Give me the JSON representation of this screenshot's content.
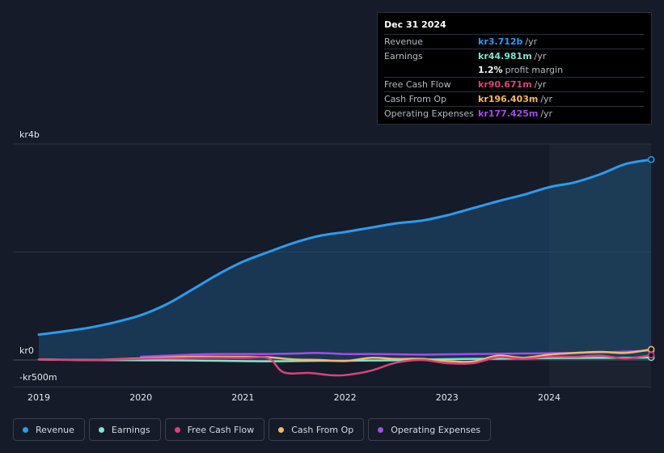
{
  "tooltip": {
    "date": "Dec 31 2024",
    "rows": [
      {
        "label": "Revenue",
        "value": "kr3.712b",
        "unit": "/yr",
        "color": "#2d9bef"
      },
      {
        "label": "Earnings",
        "value": "kr44.981m",
        "unit": "/yr",
        "color": "#7de6cf"
      },
      {
        "label": "",
        "value": "1.2%",
        "unit": "profit margin",
        "color": "#ffffff"
      },
      {
        "label": "Free Cash Flow",
        "value": "kr90.671m",
        "unit": "/yr",
        "color": "#d6457d"
      },
      {
        "label": "Cash From Op",
        "value": "kr196.403m",
        "unit": "/yr",
        "color": "#f2b76e"
      },
      {
        "label": "Operating Expenses",
        "value": "kr177.425m",
        "unit": "/yr",
        "color": "#a24de8"
      }
    ]
  },
  "legend": [
    {
      "label": "Revenue",
      "color": "#2d9bef"
    },
    {
      "label": "Earnings",
      "color": "#7de6cf"
    },
    {
      "label": "Free Cash Flow",
      "color": "#d6457d"
    },
    {
      "label": "Cash From Op",
      "color": "#f2b76e"
    },
    {
      "label": "Operating Expenses",
      "color": "#a24de8"
    }
  ],
  "chart_data": {
    "type": "line",
    "y_tick_labels": [
      "kr4b",
      "kr0",
      "-kr500m"
    ],
    "y_ticks": [
      4000,
      0,
      -500
    ],
    "ylim": [
      -500,
      4000
    ],
    "xlim": [
      2019.0,
      2025.0
    ],
    "x_tick_labels": [
      "2019",
      "2020",
      "2021",
      "2022",
      "2023",
      "2024"
    ],
    "x_ticks": [
      2019,
      2020,
      2021,
      2022,
      2023,
      2024
    ],
    "highlight_from": 2024.0,
    "grid": "horizontal",
    "legend_position": "bottom",
    "series": [
      {
        "name": "Revenue",
        "color": "#2d9bef",
        "fill": true,
        "x": [
          2019.0,
          2019.25,
          2019.5,
          2019.75,
          2020.0,
          2020.25,
          2020.5,
          2020.75,
          2021.0,
          2021.25,
          2021.5,
          2021.75,
          2022.0,
          2022.25,
          2022.5,
          2022.75,
          2023.0,
          2023.25,
          2023.5,
          2023.75,
          2024.0,
          2024.25,
          2024.5,
          2024.75,
          2025.0
        ],
        "y": [
          470,
          530,
          600,
          700,
          830,
          1030,
          1300,
          1580,
          1820,
          2000,
          2170,
          2300,
          2370,
          2450,
          2530,
          2580,
          2680,
          2810,
          2940,
          3060,
          3200,
          3290,
          3440,
          3630,
          3712
        ]
      },
      {
        "name": "Earnings",
        "color": "#7de6cf",
        "x": [
          2019.0,
          2019.5,
          2020.0,
          2020.5,
          2021.0,
          2021.25,
          2021.5,
          2021.75,
          2022.0,
          2022.25,
          2022.5,
          2022.75,
          2023.0,
          2023.25,
          2023.5,
          2023.75,
          2024.0,
          2024.25,
          2024.5,
          2024.75,
          2025.0
        ],
        "y": [
          10,
          0,
          -5,
          -10,
          -20,
          -25,
          -20,
          -15,
          -15,
          -10,
          -5,
          5,
          15,
          20,
          25,
          30,
          35,
          38,
          40,
          42,
          45
        ]
      },
      {
        "name": "Free Cash Flow",
        "color": "#d6457d",
        "x": [
          2019.0,
          2019.5,
          2020.0,
          2020.5,
          2021.0,
          2021.25,
          2021.4,
          2021.65,
          2021.85,
          2022.0,
          2022.25,
          2022.5,
          2022.75,
          2023.0,
          2023.25,
          2023.5,
          2023.75,
          2024.0,
          2024.25,
          2024.5,
          2024.75,
          2025.0
        ],
        "y": [
          10,
          0,
          20,
          40,
          40,
          30,
          -230,
          -240,
          -280,
          -280,
          -200,
          -50,
          0,
          -60,
          -60,
          50,
          20,
          60,
          60,
          80,
          30,
          90
        ]
      },
      {
        "name": "Cash From Op",
        "color": "#f2b76e",
        "x": [
          2019.0,
          2019.5,
          2020.0,
          2020.5,
          2021.0,
          2021.25,
          2021.5,
          2021.75,
          2022.0,
          2022.25,
          2022.5,
          2022.75,
          2023.0,
          2023.25,
          2023.5,
          2023.75,
          2024.0,
          2024.25,
          2024.5,
          2024.75,
          2025.0
        ],
        "y": [
          10,
          0,
          30,
          60,
          60,
          50,
          10,
          0,
          -20,
          40,
          20,
          20,
          -20,
          -30,
          80,
          40,
          100,
          130,
          150,
          130,
          196
        ]
      },
      {
        "name": "Operating Expenses",
        "color": "#a24de8",
        "x": [
          2020.0,
          2020.25,
          2020.5,
          2020.75,
          2021.0,
          2021.25,
          2021.5,
          2021.75,
          2022.0,
          2022.25,
          2022.5,
          2022.75,
          2023.0,
          2023.25,
          2023.5,
          2023.75,
          2024.0,
          2024.25,
          2024.5,
          2024.75,
          2025.0
        ],
        "y": [
          60,
          80,
          100,
          110,
          110,
          110,
          120,
          130,
          110,
          110,
          105,
          100,
          105,
          110,
          115,
          120,
          125,
          130,
          140,
          155,
          177
        ]
      }
    ]
  }
}
